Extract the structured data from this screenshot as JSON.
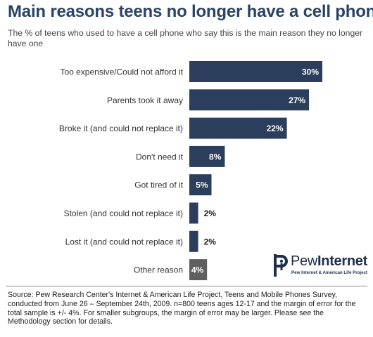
{
  "title": "Main reasons teens no longer have a cell phone",
  "subtitle": "The % of teens who used to have a cell phone who say this is the main reason they no longer have one",
  "chart_data": {
    "type": "bar",
    "orientation": "horizontal",
    "categories": [
      "Too expensive/Could not afford it",
      "Parents took it away",
      "Broke it (and could not replace it)",
      "Don't need it",
      "Got tired of it",
      "Stolen (and could not replace it)",
      "Lost it (and could not replace it)",
      "Other reason"
    ],
    "values": [
      30,
      27,
      22,
      8,
      5,
      2,
      2,
      4
    ],
    "value_labels": [
      "30%",
      "27%",
      "22%",
      "8%",
      "5%",
      "2%",
      "2%",
      "4%"
    ],
    "bar_colors": [
      "#2b3f5c",
      "#2b3f5c",
      "#2b3f5c",
      "#2b3f5c",
      "#2b3f5c",
      "#2b3f5c",
      "#2b3f5c",
      "#5f5f5f"
    ],
    "label_inside_min": 4,
    "xlim": [
      0,
      30
    ],
    "grid": false,
    "legend": "none"
  },
  "logo": {
    "word_light": "Pew",
    "word_bold": "Internet",
    "tagline": "Pew Internet & American Life Project"
  },
  "source": "Source: Pew Research Center's Internet & American Life Project, Teens and Mobile Phones Survey, conducted from June 26 – September 24th, 2009. n=800 teens ages 12-17 and the margin of error for the total sample is +/- 4%. For smaller subgroups, the margin of error may be larger. Please see the Methodology section for details."
}
